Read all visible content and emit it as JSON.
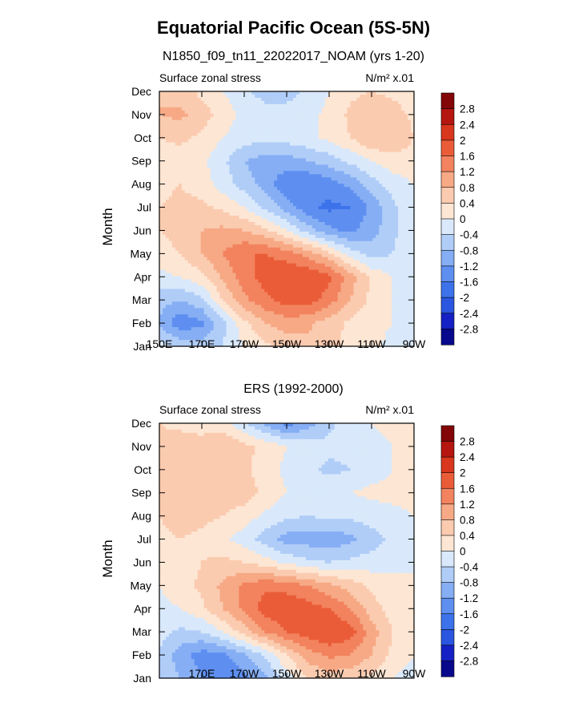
{
  "figure": {
    "title": "Equatorial Pacific Ocean (5S-5N)",
    "subtitle": "N1850_f09_tn11_22022017_NOAM (yrs 1-20)",
    "second_title": "ERS (1992-2000)"
  },
  "chart_data": [
    {
      "type": "heatmap",
      "title": "N1850_f09_tn11_22022017_NOAM (yrs 1-20)",
      "left_label": "Surface zonal stress",
      "right_label": "N/m² x.01",
      "ylabel": "Month",
      "xlabel": "",
      "months": [
        "Jan",
        "Feb",
        "Mar",
        "Apr",
        "May",
        "Jun",
        "Jul",
        "Aug",
        "Sep",
        "Oct",
        "Nov",
        "Dec"
      ],
      "xticks": [
        "150E",
        "170E",
        "170W",
        "150W",
        "130W",
        "110W",
        "90W"
      ],
      "x_range_deg_east": [
        150,
        270
      ],
      "levels": [
        -2.8,
        -2.4,
        -2,
        -1.6,
        -1.2,
        -0.8,
        -0.4,
        0,
        0.4,
        0.8,
        1.2,
        1.6,
        2,
        2.4,
        2.8
      ],
      "level_labels": [
        "2.8",
        "2.4",
        "2",
        "1.6",
        "1.2",
        "0.8",
        "0.4",
        "0",
        "-0.4",
        "-0.8",
        "-1.2",
        "-1.6",
        "-2",
        "-2.4",
        "-2.8"
      ],
      "colors": [
        "#08088c",
        "#1521c4",
        "#2b56e0",
        "#3c72ea",
        "#5e8ff0",
        "#86aef4",
        "#b0cdf8",
        "#d9e9fb",
        "#fde6d3",
        "#fbcbb0",
        "#f7a985",
        "#f2835e",
        "#ea5c38",
        "#d8361d",
        "#b5160f",
        "#830707"
      ],
      "grid_lon": [
        150,
        160,
        170,
        180,
        190,
        200,
        210,
        220,
        230,
        240,
        250,
        260,
        270
      ],
      "values": [
        [
          -0.2,
          -0.5,
          -0.6,
          -0.4,
          0.0,
          0.3,
          0.6,
          0.7,
          0.5,
          0.3,
          0.1,
          -0.1,
          -0.2
        ],
        [
          -0.9,
          -1.5,
          -1.3,
          -0.5,
          0.3,
          0.8,
          1.0,
          0.9,
          0.6,
          0.3,
          0.1,
          0.0,
          -0.1
        ],
        [
          -0.6,
          -0.8,
          -0.5,
          0.4,
          1.1,
          1.5,
          1.8,
          1.8,
          1.4,
          0.8,
          0.3,
          0.0,
          -0.1
        ],
        [
          -0.1,
          0.0,
          0.3,
          0.9,
          1.4,
          1.8,
          2.0,
          2.0,
          1.7,
          1.0,
          0.3,
          0.0,
          -0.1
        ],
        [
          0.2,
          0.4,
          0.8,
          1.2,
          1.6,
          1.6,
          1.4,
          1.0,
          0.5,
          -0.2,
          -0.6,
          -0.4,
          -0.1
        ],
        [
          0.4,
          0.6,
          0.8,
          0.9,
          0.8,
          0.5,
          0.0,
          -0.6,
          -1.1,
          -1.3,
          -1.0,
          -0.5,
          -0.1
        ],
        [
          0.4,
          0.5,
          0.5,
          0.3,
          0.0,
          -0.5,
          -1.0,
          -1.5,
          -1.7,
          -1.6,
          -1.1,
          -0.5,
          -0.1
        ],
        [
          0.3,
          0.4,
          0.2,
          -0.2,
          -0.6,
          -1.0,
          -1.5,
          -1.6,
          -1.4,
          -1.1,
          -0.6,
          -0.2,
          0.0
        ],
        [
          0.2,
          0.2,
          0.1,
          -0.3,
          -0.8,
          -1.0,
          -1.0,
          -0.8,
          -0.6,
          -0.3,
          0.0,
          0.2,
          0.2
        ],
        [
          0.4,
          0.5,
          0.3,
          0.0,
          -0.2,
          -0.3,
          -0.2,
          -0.1,
          0.1,
          0.4,
          0.8,
          0.8,
          0.4
        ],
        [
          0.8,
          0.9,
          0.6,
          0.2,
          -0.1,
          -0.2,
          -0.2,
          -0.1,
          0.1,
          0.5,
          0.7,
          0.6,
          0.3
        ],
        [
          0.8,
          0.6,
          0.3,
          0.0,
          -0.3,
          -0.6,
          -0.6,
          -0.3,
          0.0,
          0.3,
          0.4,
          0.3,
          0.1
        ]
      ]
    },
    {
      "type": "heatmap",
      "title": "ERS (1992-2000)",
      "left_label": "Surface zonal stress",
      "right_label": "N/m² x.01",
      "ylabel": "Month",
      "xlabel": "",
      "months": [
        "Jan",
        "Feb",
        "Mar",
        "Apr",
        "May",
        "Jun",
        "Jul",
        "Aug",
        "Sep",
        "Oct",
        "Nov",
        "Dec"
      ],
      "xticks": [
        "170E",
        "170W",
        "150W",
        "130W",
        "110W",
        "90W"
      ],
      "x_range_deg_east": [
        150,
        270
      ],
      "levels": [
        -2.8,
        -2.4,
        -2,
        -1.6,
        -1.2,
        -0.8,
        -0.4,
        0,
        0.4,
        0.8,
        1.2,
        1.6,
        2,
        2.4,
        2.8
      ],
      "level_labels": [
        "2.8",
        "2.4",
        "2",
        "1.6",
        "1.2",
        "0.8",
        "0.4",
        "0",
        "-0.4",
        "-0.8",
        "-1.2",
        "-1.6",
        "-2",
        "-2.4",
        "-2.8"
      ],
      "colors": [
        "#08088c",
        "#1521c4",
        "#2b56e0",
        "#3c72ea",
        "#5e8ff0",
        "#86aef4",
        "#b0cdf8",
        "#d9e9fb",
        "#fde6d3",
        "#fbcbb0",
        "#f7a985",
        "#f2835e",
        "#ea5c38",
        "#d8361d",
        "#b5160f",
        "#830707"
      ],
      "grid_lon": [
        150,
        160,
        170,
        180,
        190,
        200,
        210,
        220,
        230,
        240,
        250,
        260,
        270
      ],
      "values": [
        [
          -0.5,
          -0.8,
          -1.2,
          -1.5,
          -1.3,
          -0.9,
          -0.2,
          0.4,
          0.6,
          0.5,
          0.3,
          0.0,
          -0.2
        ],
        [
          -0.5,
          -1.0,
          -1.4,
          -1.3,
          -0.9,
          -0.3,
          0.4,
          1.0,
          1.3,
          1.2,
          0.8,
          0.3,
          0.0
        ],
        [
          -0.2,
          -0.5,
          -0.4,
          0.0,
          0.6,
          1.2,
          1.6,
          1.8,
          2.0,
          1.8,
          1.0,
          0.4,
          0.0
        ],
        [
          -0.1,
          0.0,
          0.3,
          0.8,
          1.3,
          1.8,
          2.0,
          1.8,
          1.6,
          1.2,
          0.6,
          0.2,
          0.0
        ],
        [
          0.0,
          0.2,
          0.5,
          0.9,
          1.3,
          1.5,
          1.4,
          1.2,
          0.9,
          0.6,
          0.3,
          0.1,
          0.0
        ],
        [
          0.1,
          0.2,
          0.4,
          0.5,
          0.4,
          0.2,
          -0.1,
          -0.3,
          -0.4,
          -0.3,
          -0.2,
          -0.1,
          0.0
        ],
        [
          0.3,
          0.4,
          0.3,
          0.1,
          -0.2,
          -0.6,
          -1.0,
          -1.0,
          -1.1,
          -0.9,
          -0.6,
          -0.3,
          -0.1
        ],
        [
          0.4,
          0.6,
          0.5,
          0.4,
          0.2,
          -0.1,
          -0.3,
          -0.4,
          -0.3,
          -0.3,
          -0.2,
          -0.1,
          0.0
        ],
        [
          0.5,
          0.6,
          0.6,
          0.7,
          0.6,
          0.3,
          0.0,
          -0.2,
          -0.1,
          0.0,
          0.1,
          0.1,
          0.1
        ],
        [
          0.6,
          0.5,
          0.6,
          0.7,
          0.5,
          0.2,
          -0.1,
          -0.3,
          -0.5,
          -0.4,
          -0.2,
          0.0,
          0.1
        ],
        [
          0.5,
          0.6,
          0.6,
          0.8,
          0.5,
          0.3,
          0.0,
          -0.2,
          -0.3,
          -0.3,
          -0.1,
          0.0,
          0.1
        ],
        [
          0.4,
          0.3,
          0.2,
          0.1,
          -0.3,
          -0.9,
          -1.4,
          -1.0,
          -0.5,
          -0.2,
          0.0,
          0.1,
          0.2
        ]
      ]
    }
  ]
}
